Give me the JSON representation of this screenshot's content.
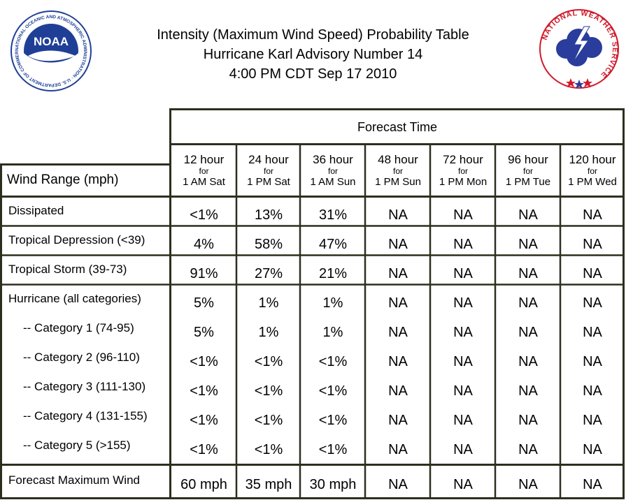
{
  "header": {
    "title_line1": "Intensity (Maximum Wind Speed) Probability Table",
    "title_line2": "Hurricane Karl Advisory Number 14",
    "title_line3": "4:00 PM CDT Sep 17 2010"
  },
  "logos": {
    "noaa": {
      "text": "NOAA",
      "ring": "NATIONAL OCEANIC AND ATMOSPHERIC ADMINISTRATION · U.S. DEPARTMENT OF COMMERCE"
    },
    "nws": {
      "ring": "NATIONAL WEATHER SERVICE"
    }
  },
  "table": {
    "forecast_time_label": "Forecast Time",
    "row_header_label": "Wind Range (mph)",
    "columns": [
      {
        "hours": "12 hour",
        "for": "for",
        "when": "1 AM Sat"
      },
      {
        "hours": "24 hour",
        "for": "for",
        "when": "1 PM Sat"
      },
      {
        "hours": "36 hour",
        "for": "for",
        "when": "1 AM Sun"
      },
      {
        "hours": "48 hour",
        "for": "for",
        "when": "1 PM Sun"
      },
      {
        "hours": "72 hour",
        "for": "for",
        "when": "1 PM Mon"
      },
      {
        "hours": "96 hour",
        "for": "for",
        "when": "1 PM Tue"
      },
      {
        "hours": "120 hour",
        "for": "for",
        "when": "1 PM Wed"
      }
    ],
    "rows": [
      {
        "label": "Dissipated",
        "values": [
          "<1%",
          "13%",
          "31%",
          "NA",
          "NA",
          "NA",
          "NA"
        ]
      },
      {
        "label": "Tropical Depression (<39)",
        "values": [
          "4%",
          "58%",
          "47%",
          "NA",
          "NA",
          "NA",
          "NA"
        ]
      },
      {
        "label": "Tropical Storm (39-73)",
        "values": [
          "91%",
          "27%",
          "21%",
          "NA",
          "NA",
          "NA",
          "NA"
        ]
      },
      {
        "label": "Hurricane (all categories)",
        "values": [
          "5%",
          "1%",
          "1%",
          "NA",
          "NA",
          "NA",
          "NA"
        ]
      },
      {
        "label": "-- Category 1 (74-95)",
        "values": [
          "5%",
          "1%",
          "1%",
          "NA",
          "NA",
          "NA",
          "NA"
        ]
      },
      {
        "label": "-- Category 2 (96-110)",
        "values": [
          "<1%",
          "<1%",
          "<1%",
          "NA",
          "NA",
          "NA",
          "NA"
        ]
      },
      {
        "label": "-- Category 3 (111-130)",
        "values": [
          "<1%",
          "<1%",
          "<1%",
          "NA",
          "NA",
          "NA",
          "NA"
        ]
      },
      {
        "label": "-- Category 4 (131-155)",
        "values": [
          "<1%",
          "<1%",
          "<1%",
          "NA",
          "NA",
          "NA",
          "NA"
        ]
      },
      {
        "label": "-- Category 5 (>155)",
        "values": [
          "<1%",
          "<1%",
          "<1%",
          "NA",
          "NA",
          "NA",
          "NA"
        ]
      },
      {
        "label": "Forecast Maximum Wind",
        "values": [
          "60 mph",
          "35 mph",
          "30 mph",
          "NA",
          "NA",
          "NA",
          "NA"
        ]
      }
    ]
  },
  "colors": {
    "border": "#2e2e1f",
    "noaa_blue": "#1f3f97",
    "nws_red": "#d01a2a",
    "nws_blue": "#2a3d9c"
  }
}
